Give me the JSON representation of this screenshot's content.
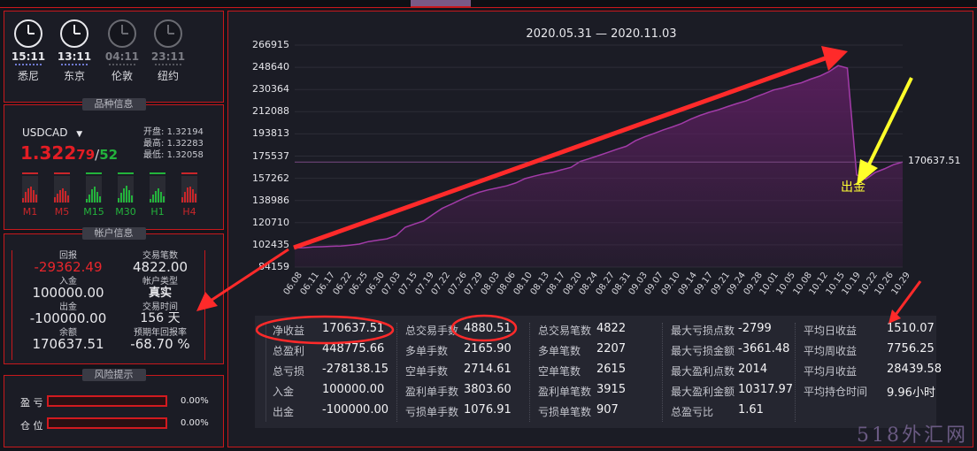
{
  "clocks": [
    {
      "time": "15:11",
      "city": "悉尼",
      "active": true
    },
    {
      "time": "13:11",
      "city": "东京",
      "active": true
    },
    {
      "time": "04:11",
      "city": "伦敦",
      "active": false
    },
    {
      "time": "23:11",
      "city": "纽约",
      "active": false
    }
  ],
  "symbol_info": {
    "section_title": "品种信息",
    "symbol": "USDCAD",
    "price_big": "1.322",
    "price_bid": "79",
    "price_sep": "/",
    "price_ask": "52",
    "open_label": "开盘:",
    "open": "1.32194",
    "high_label": "最高:",
    "high": "1.32283",
    "low_label": "最低:",
    "low": "1.32058",
    "timeframes": [
      {
        "label": "M1",
        "color": "#c9262a"
      },
      {
        "label": "M5",
        "color": "#c9262a"
      },
      {
        "label": "M15",
        "color": "#23b33c"
      },
      {
        "label": "M30",
        "color": "#23b33c"
      },
      {
        "label": "H1",
        "color": "#23b33c"
      },
      {
        "label": "H4",
        "color": "#c9262a"
      }
    ]
  },
  "account": {
    "section_title": "帐户信息",
    "return_label": "回报",
    "return_value": "-29362.49",
    "deposit_label": "入金",
    "deposit_value": "100000.00",
    "withdraw_label": "出金",
    "withdraw_value": "-100000.00",
    "balance_label": "余额",
    "balance_value": "170637.51",
    "trades_label": "交易笔数",
    "trades_value": "4822.00",
    "type_label": "帐户类型",
    "type_value": "真实",
    "time_label": "交易时间",
    "time_value": "156 天",
    "annual_label": "预期年回报率",
    "annual_value": "-68.70 %"
  },
  "risk": {
    "section_title": "风险提示",
    "profit_label": "盈 亏",
    "profit_value": "0.00%",
    "position_label": "仓 位",
    "position_value": "0.00%"
  },
  "chart_data": {
    "type": "area",
    "title": "2020.05.31 — 2020.11.03",
    "yticks": [
      "266915",
      "248640",
      "230364",
      "212088",
      "193813",
      "175537",
      "157262",
      "138986",
      "120710",
      "102435",
      "84159"
    ],
    "ylim": [
      84159,
      266915
    ],
    "xticks": [
      "06.08",
      "06.11",
      "06.17",
      "06.22",
      "06.25",
      "06.30",
      "07.03",
      "07.15",
      "07.19",
      "07.22",
      "07.26",
      "07.29",
      "08.03",
      "08.06",
      "08.10",
      "08.13",
      "08.17",
      "08.20",
      "08.24",
      "08.27",
      "08.31",
      "09.03",
      "09.07",
      "09.10",
      "09.14",
      "09.17",
      "09.21",
      "09.24",
      "09.28",
      "10.01",
      "10.05",
      "10.08",
      "10.12",
      "10.15",
      "10.19",
      "10.22",
      "10.26",
      "10.29"
    ],
    "series": [
      {
        "values": [
          100000,
          100100,
          100700,
          100900,
          101300,
          101500,
          102200,
          103100,
          105100,
          106300,
          107400,
          110000,
          116900,
          119600,
          122100,
          127400,
          132400,
          135900,
          139600,
          142900,
          145700,
          147700,
          149300,
          151000,
          153400,
          157000,
          159000,
          160800,
          162200,
          164300,
          166300,
          171200,
          173500,
          176000,
          178600,
          181200,
          183600,
          188200,
          191400,
          194200,
          197100,
          199600,
          202300,
          206000,
          209000,
          211600,
          213700,
          216300,
          218800,
          221000,
          224200,
          227000,
          230000,
          231700,
          234000,
          235900,
          238900,
          241400,
          245000,
          250000,
          248000,
          160000,
          156500,
          162000,
          165000,
          168500,
          170637.51
        ]
      }
    ],
    "last_value_label": "170637.51",
    "reference_line": 170637.51,
    "annotation": "出金",
    "fill_color": "#5a1f5e",
    "line_color": "#a23ba8"
  },
  "stats": [
    [
      {
        "label": "净收益",
        "value": "170637.51"
      },
      {
        "label": "总盈利",
        "value": "448775.66"
      },
      {
        "label": "总亏损",
        "value": "-278138.15"
      },
      {
        "label": "入金",
        "value": "100000.00"
      },
      {
        "label": "出金",
        "value": "-100000.00"
      }
    ],
    [
      {
        "label": "总交易手数",
        "value": "4880.51"
      },
      {
        "label": "多单手数",
        "value": "2165.90"
      },
      {
        "label": "空单手数",
        "value": "2714.61"
      },
      {
        "label": "盈利单手数",
        "value": "3803.60"
      },
      {
        "label": "亏损单手数",
        "value": "1076.91"
      }
    ],
    [
      {
        "label": "总交易笔数",
        "value": "4822"
      },
      {
        "label": "多单笔数",
        "value": "2207"
      },
      {
        "label": "空单笔数",
        "value": "2615"
      },
      {
        "label": "盈利单笔数",
        "value": "3915"
      },
      {
        "label": "亏损单笔数",
        "value": "907"
      }
    ],
    [
      {
        "label": "最大亏损点数",
        "value": "-2799"
      },
      {
        "label": "最大亏损金额",
        "value": "-3661.48"
      },
      {
        "label": "最大盈利点数",
        "value": "2014"
      },
      {
        "label": "最大盈利金额",
        "value": "10317.97"
      },
      {
        "label": "总盈亏比",
        "value": "1.61"
      }
    ],
    [
      {
        "label": "平均日收益",
        "value": "1510.07"
      },
      {
        "label": "平均周收益",
        "value": "7756.25"
      },
      {
        "label": "平均月收益",
        "value": "28439.58"
      },
      {
        "label": "平均持仓时间",
        "value": "9.96小时"
      }
    ]
  ],
  "watermark": "518外汇网"
}
